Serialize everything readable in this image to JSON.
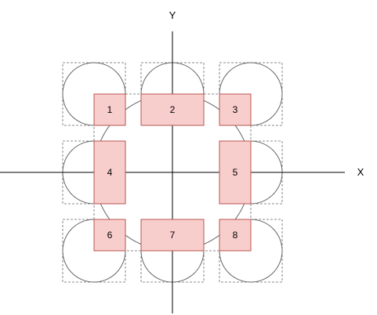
{
  "axes": {
    "x_label": "X",
    "y_label": "Y"
  },
  "regions": [
    {
      "id": "1",
      "label": "1"
    },
    {
      "id": "2",
      "label": "2"
    },
    {
      "id": "3",
      "label": "3"
    },
    {
      "id": "4",
      "label": "4"
    },
    {
      "id": "5",
      "label": "5"
    },
    {
      "id": "6",
      "label": "6"
    },
    {
      "id": "7",
      "label": "7"
    },
    {
      "id": "8",
      "label": "8"
    }
  ],
  "colors": {
    "region_fill": "#f8cecc",
    "region_stroke": "#b85450",
    "line": "#000000",
    "circle_stroke": "#666666",
    "dashed_box": "#666666"
  }
}
